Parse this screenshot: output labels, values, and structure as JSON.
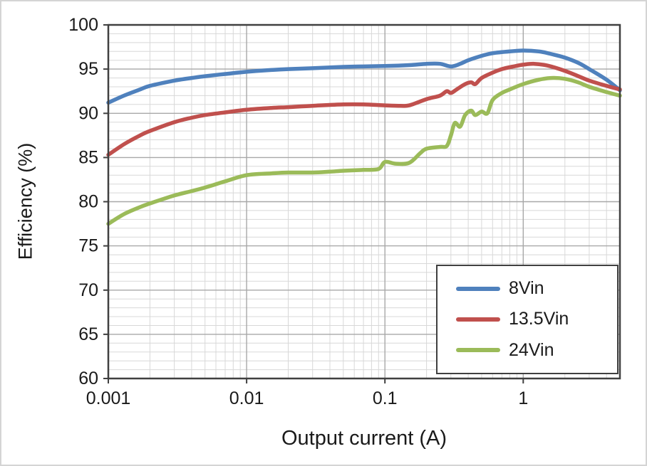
{
  "chart_data": {
    "type": "line",
    "title": "",
    "xlabel": "Output current (A)",
    "ylabel": "Efficiency (%)",
    "x_scale": "log",
    "xlim": [
      0.001,
      5
    ],
    "ylim": [
      60,
      100
    ],
    "y_major_ticks": [
      60,
      65,
      70,
      75,
      80,
      85,
      90,
      95,
      100
    ],
    "y_minor_step": 1,
    "x_major_ticks": [
      0.001,
      0.01,
      0.1,
      1
    ],
    "x_tick_labels": [
      "0.001",
      "0.01",
      "0.1",
      "1"
    ],
    "grid": "major+minor",
    "legend_position": "inside bottom-right",
    "series": [
      {
        "name": "8Vin",
        "color": "#4F81BD",
        "points": [
          [
            0.001,
            91.2
          ],
          [
            0.0013,
            92.0
          ],
          [
            0.0017,
            92.7
          ],
          [
            0.002,
            93.1
          ],
          [
            0.003,
            93.7
          ],
          [
            0.004,
            94.0
          ],
          [
            0.005,
            94.2
          ],
          [
            0.007,
            94.45
          ],
          [
            0.01,
            94.7
          ],
          [
            0.015,
            94.9
          ],
          [
            0.02,
            95.0
          ],
          [
            0.03,
            95.1
          ],
          [
            0.05,
            95.25
          ],
          [
            0.07,
            95.3
          ],
          [
            0.1,
            95.35
          ],
          [
            0.15,
            95.45
          ],
          [
            0.2,
            95.6
          ],
          [
            0.25,
            95.6
          ],
          [
            0.3,
            95.3
          ],
          [
            0.35,
            95.6
          ],
          [
            0.4,
            96.0
          ],
          [
            0.5,
            96.5
          ],
          [
            0.6,
            96.8
          ],
          [
            0.8,
            97.0
          ],
          [
            1.0,
            97.1
          ],
          [
            1.3,
            97.0
          ],
          [
            1.6,
            96.7
          ],
          [
            2.0,
            96.3
          ],
          [
            2.5,
            95.7
          ],
          [
            3.0,
            95.0
          ],
          [
            4.0,
            93.8
          ],
          [
            5.0,
            92.6
          ]
        ]
      },
      {
        "name": "13.5Vin",
        "color": "#C0504D",
        "points": [
          [
            0.001,
            85.3
          ],
          [
            0.0013,
            86.5
          ],
          [
            0.0017,
            87.5
          ],
          [
            0.002,
            88.0
          ],
          [
            0.003,
            89.0
          ],
          [
            0.004,
            89.5
          ],
          [
            0.005,
            89.8
          ],
          [
            0.007,
            90.1
          ],
          [
            0.01,
            90.4
          ],
          [
            0.015,
            90.6
          ],
          [
            0.02,
            90.7
          ],
          [
            0.03,
            90.85
          ],
          [
            0.05,
            91.0
          ],
          [
            0.07,
            91.0
          ],
          [
            0.1,
            90.9
          ],
          [
            0.13,
            90.85
          ],
          [
            0.15,
            90.9
          ],
          [
            0.2,
            91.6
          ],
          [
            0.25,
            92.0
          ],
          [
            0.28,
            92.5
          ],
          [
            0.3,
            92.3
          ],
          [
            0.33,
            92.7
          ],
          [
            0.38,
            93.3
          ],
          [
            0.42,
            93.5
          ],
          [
            0.45,
            93.3
          ],
          [
            0.5,
            94.0
          ],
          [
            0.6,
            94.6
          ],
          [
            0.7,
            95.0
          ],
          [
            0.85,
            95.3
          ],
          [
            1.0,
            95.5
          ],
          [
            1.2,
            95.6
          ],
          [
            1.5,
            95.4
          ],
          [
            2.0,
            94.8
          ],
          [
            2.5,
            94.2
          ],
          [
            3.0,
            93.7
          ],
          [
            4.0,
            93.1
          ],
          [
            5.0,
            92.7
          ]
        ]
      },
      {
        "name": "24Vin",
        "color": "#9BBB59",
        "points": [
          [
            0.001,
            77.5
          ],
          [
            0.0013,
            78.6
          ],
          [
            0.0017,
            79.4
          ],
          [
            0.002,
            79.8
          ],
          [
            0.003,
            80.7
          ],
          [
            0.004,
            81.2
          ],
          [
            0.005,
            81.6
          ],
          [
            0.007,
            82.3
          ],
          [
            0.01,
            83.0
          ],
          [
            0.015,
            83.2
          ],
          [
            0.02,
            83.3
          ],
          [
            0.03,
            83.3
          ],
          [
            0.04,
            83.4
          ],
          [
            0.05,
            83.5
          ],
          [
            0.07,
            83.6
          ],
          [
            0.09,
            83.7
          ],
          [
            0.1,
            84.5
          ],
          [
            0.12,
            84.3
          ],
          [
            0.15,
            84.4
          ],
          [
            0.18,
            85.5
          ],
          [
            0.2,
            86.0
          ],
          [
            0.25,
            86.2
          ],
          [
            0.28,
            86.3
          ],
          [
            0.3,
            87.5
          ],
          [
            0.32,
            88.9
          ],
          [
            0.35,
            88.5
          ],
          [
            0.38,
            89.8
          ],
          [
            0.42,
            90.3
          ],
          [
            0.45,
            89.8
          ],
          [
            0.5,
            90.2
          ],
          [
            0.55,
            90.0
          ],
          [
            0.6,
            91.5
          ],
          [
            0.7,
            92.3
          ],
          [
            0.8,
            92.7
          ],
          [
            1.0,
            93.3
          ],
          [
            1.3,
            93.8
          ],
          [
            1.6,
            94.0
          ],
          [
            2.0,
            93.9
          ],
          [
            2.5,
            93.5
          ],
          [
            3.0,
            93.0
          ],
          [
            4.0,
            92.4
          ],
          [
            5.0,
            92.0
          ]
        ]
      }
    ],
    "style": {
      "plot_border_color": "#404040",
      "major_grid_color": "#a8a8a8",
      "minor_grid_color": "#d8d8d8",
      "line_width": 5.5
    }
  }
}
